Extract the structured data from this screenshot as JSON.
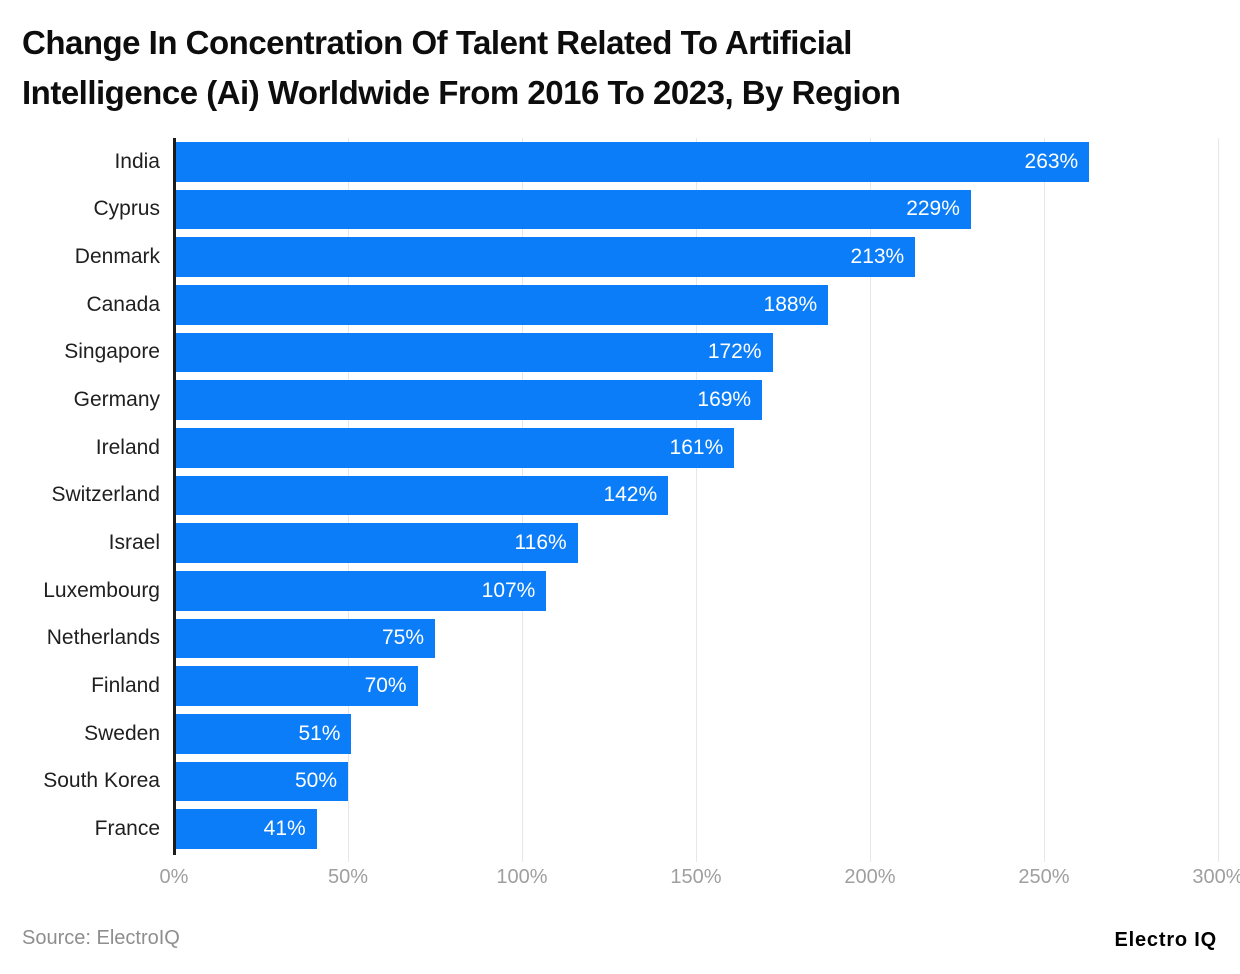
{
  "title": {
    "line1": "Change In Concentration Of Talent Related To Artificial",
    "line2": "Intelligence (Ai) Worldwide From 2016 To 2023, By Region"
  },
  "chart_data": {
    "type": "bar",
    "orientation": "horizontal",
    "title": "Change In Concentration Of Talent Related To Artificial Intelligence (Ai) Worldwide From 2016 To 2023, By Region",
    "categories": [
      "India",
      "Cyprus",
      "Denmark",
      "Canada",
      "Singapore",
      "Germany",
      "Ireland",
      "Switzerland",
      "Israel",
      "Luxembourg",
      "Netherlands",
      "Finland",
      "Sweden",
      "South Korea",
      "France"
    ],
    "values": [
      263,
      229,
      213,
      188,
      172,
      169,
      161,
      142,
      116,
      107,
      75,
      70,
      51,
      50,
      41
    ],
    "value_labels": [
      "263%",
      "229%",
      "213%",
      "188%",
      "172%",
      "169%",
      "161%",
      "142%",
      "116%",
      "107%",
      "75%",
      "70%",
      "51%",
      "50%",
      "41%"
    ],
    "value_suffix": "%",
    "xlabel": "",
    "ylabel": "",
    "xlim": [
      0,
      300
    ],
    "xticks": [
      "0%",
      "50%",
      "100%",
      "150%",
      "200%",
      "250%",
      "300%"
    ],
    "xtick_values": [
      0,
      50,
      100,
      150,
      200,
      250,
      300
    ],
    "grid": "vertical",
    "legend": "none",
    "bar_color": "#0b7df8",
    "value_label_color": "#ffffff",
    "axis_line_color": "#1c1c1c",
    "gridline_color": "#e7e7e7"
  },
  "footer": {
    "source": "Source: ElectroIQ",
    "brand": "Electro IQ"
  }
}
